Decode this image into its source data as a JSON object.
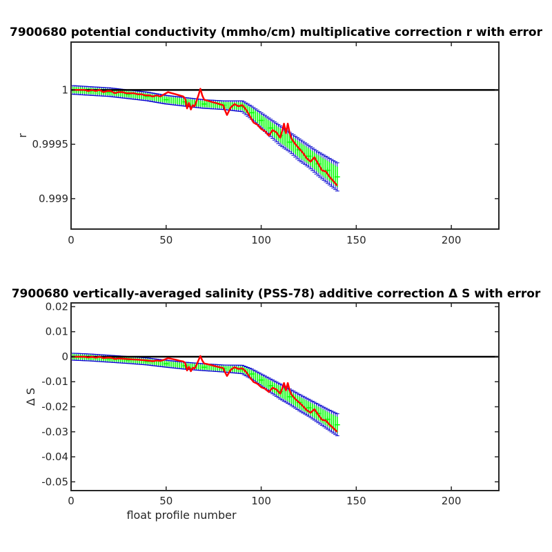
{
  "chart_data": [
    {
      "type": "line",
      "title": "7900680 potential conductivity (mmho/cm) multiplicative correction r with error",
      "xlabel": "",
      "ylabel": "r",
      "xlim": [
        0,
        225
      ],
      "ylim": [
        0.99872,
        1.00044
      ],
      "xticks": [
        0,
        50,
        100,
        150,
        200
      ],
      "xtick_labels": [
        "0",
        "50",
        "100",
        "150",
        "200"
      ],
      "yticks": [
        0.999,
        0.9995,
        1
      ],
      "ytick_labels": [
        "0.999",
        "0.9995",
        "1"
      ],
      "grid": false,
      "reference_line": 1,
      "series": [
        {
          "color": "#ff0000",
          "x": [
            1,
            3,
            5,
            7,
            9,
            11,
            13,
            15,
            17,
            19,
            21,
            23,
            25,
            27,
            29,
            31,
            33,
            35,
            37,
            39,
            41,
            43,
            45,
            47,
            49,
            51,
            53,
            55,
            57,
            59,
            60,
            61,
            62,
            63,
            64,
            65,
            66,
            67,
            68,
            69,
            70,
            72,
            74,
            76,
            78,
            80,
            81,
            82,
            84,
            86,
            88,
            90,
            92,
            94,
            96,
            98,
            100,
            102,
            104,
            106,
            108,
            110,
            111,
            112,
            113,
            114,
            115,
            116,
            118,
            120,
            122,
            124,
            126,
            128,
            130,
            132,
            134,
            136,
            138,
            140
          ],
          "y": [
            1.0,
            1.0,
            1.0,
            1.0,
            0.99999,
            1.0,
            0.99999,
            1.0,
            0.99998,
            0.99999,
            0.99999,
            0.99997,
            0.99998,
            0.99998,
            0.99997,
            0.99997,
            0.99997,
            0.99996,
            0.99996,
            0.99995,
            0.99995,
            0.99994,
            0.99995,
            0.99994,
            0.99996,
            0.99998,
            0.99997,
            0.99996,
            0.99995,
            0.99994,
            0.99992,
            0.99983,
            0.99988,
            0.99982,
            0.99986,
            0.99985,
            0.9999,
            0.99995,
            1.00001,
            0.99995,
            0.99991,
            0.9999,
            0.99989,
            0.99988,
            0.99987,
            0.99986,
            0.99981,
            0.99977,
            0.99984,
            0.99987,
            0.99985,
            0.99986,
            0.99982,
            0.99976,
            0.9997,
            0.99968,
            0.99964,
            0.99962,
            0.99958,
            0.99963,
            0.99961,
            0.99956,
            0.99962,
            0.99969,
            0.9996,
            0.99969,
            0.9996,
            0.99955,
            0.9995,
            0.99946,
            0.99942,
            0.99937,
            0.99934,
            0.99938,
            0.99932,
            0.99926,
            0.99925,
            0.9992,
            0.99916,
            0.99912
          ]
        },
        {
          "color": "#00ff00",
          "x": [
            1,
            10,
            20,
            30,
            40,
            50,
            60,
            70,
            80,
            90,
            95,
            100,
            105,
            110,
            115,
            120,
            125,
            130,
            135,
            140
          ],
          "y": [
            1.0,
            0.99999,
            0.99998,
            0.99996,
            0.99994,
            0.99991,
            0.99989,
            0.99987,
            0.99986,
            0.99985,
            0.99979,
            0.99972,
            0.99965,
            0.99958,
            0.99952,
            0.99945,
            0.99939,
            0.99932,
            0.99926,
            0.9992
          ],
          "err": [
            4e-05,
            4e-05,
            4e-05,
            4e-05,
            4e-05,
            4e-05,
            4e-05,
            4e-05,
            4e-05,
            5e-05,
            6e-05,
            7e-05,
            8e-05,
            9e-05,
            9e-05,
            0.0001,
            0.0001,
            0.00011,
            0.00012,
            0.00013
          ]
        }
      ]
    },
    {
      "type": "line",
      "title": "7900680 vertically-averaged salinity (PSS-78) additive correction Δ S with error",
      "xlabel": "float profile number",
      "ylabel": "Δ S",
      "xlim": [
        0,
        225
      ],
      "ylim": [
        -0.0535,
        0.0215
      ],
      "xticks": [
        0,
        50,
        100,
        150,
        200
      ],
      "xtick_labels": [
        "0",
        "50",
        "100",
        "150",
        "200"
      ],
      "yticks": [
        -0.05,
        -0.04,
        -0.03,
        -0.02,
        -0.01,
        0,
        0.01,
        0.02
      ],
      "ytick_labels": [
        "-0.05",
        "-0.04",
        "-0.03",
        "-0.02",
        "-0.01",
        "0",
        "0.01",
        "0.02"
      ],
      "grid": false,
      "reference_line": 0,
      "series": [
        {
          "color": "#ff0000",
          "x": [
            1,
            3,
            5,
            7,
            9,
            11,
            13,
            15,
            17,
            19,
            21,
            23,
            25,
            27,
            29,
            31,
            33,
            35,
            37,
            39,
            41,
            43,
            45,
            47,
            49,
            51,
            53,
            55,
            57,
            59,
            60,
            61,
            62,
            63,
            64,
            65,
            66,
            67,
            68,
            69,
            70,
            72,
            74,
            76,
            78,
            80,
            81,
            82,
            84,
            86,
            88,
            90,
            92,
            94,
            96,
            98,
            100,
            102,
            104,
            106,
            108,
            110,
            111,
            112,
            113,
            114,
            115,
            116,
            118,
            120,
            122,
            124,
            126,
            128,
            130,
            132,
            134,
            136,
            138,
            140
          ],
          "y": [
            0.0,
            0.0,
            0.0,
            0.0,
            -0.0003,
            0.0,
            -0.0004,
            0.0,
            -0.0006,
            -0.0004,
            -0.0004,
            -0.0009,
            -0.0007,
            -0.0008,
            -0.0009,
            -0.001,
            -0.0011,
            -0.0012,
            -0.0013,
            -0.0014,
            -0.0016,
            -0.0018,
            -0.0015,
            -0.0017,
            -0.0012,
            -0.0006,
            -0.0009,
            -0.0012,
            -0.0016,
            -0.0019,
            -0.0025,
            -0.0055,
            -0.004,
            -0.0058,
            -0.0044,
            -0.0047,
            -0.0032,
            -0.0015,
            0.0003,
            -0.0015,
            -0.0027,
            -0.003,
            -0.0034,
            -0.0038,
            -0.0042,
            -0.0045,
            -0.0062,
            -0.0077,
            -0.0052,
            -0.0042,
            -0.0049,
            -0.0046,
            -0.006,
            -0.0082,
            -0.0101,
            -0.0108,
            -0.0122,
            -0.0128,
            -0.0141,
            -0.0124,
            -0.0131,
            -0.0148,
            -0.0128,
            -0.0105,
            -0.0135,
            -0.0105,
            -0.0136,
            -0.0152,
            -0.017,
            -0.0183,
            -0.0198,
            -0.0214,
            -0.0224,
            -0.021,
            -0.0232,
            -0.0252,
            -0.0255,
            -0.0272,
            -0.0286,
            -0.03
          ]
        },
        {
          "color": "#00ff00",
          "x": [
            1,
            10,
            20,
            30,
            40,
            50,
            60,
            70,
            80,
            90,
            95,
            100,
            105,
            110,
            115,
            120,
            125,
            130,
            135,
            140
          ],
          "y": [
            0.0,
            -0.0003,
            -0.0008,
            -0.0013,
            -0.0019,
            -0.0028,
            -0.0036,
            -0.0042,
            -0.0047,
            -0.0051,
            -0.0069,
            -0.0093,
            -0.0116,
            -0.0139,
            -0.016,
            -0.0183,
            -0.0204,
            -0.0227,
            -0.025,
            -0.0272
          ],
          "err": [
            0.0014,
            0.0014,
            0.0014,
            0.0014,
            0.0014,
            0.0014,
            0.0014,
            0.0014,
            0.0014,
            0.0017,
            0.002,
            0.0024,
            0.0027,
            0.003,
            0.0031,
            0.0033,
            0.0034,
            0.0037,
            0.004,
            0.0044
          ]
        }
      ]
    }
  ],
  "colors": {
    "error_bars": "#0000cc",
    "zero_line": "#000000",
    "axes": "#262626"
  }
}
